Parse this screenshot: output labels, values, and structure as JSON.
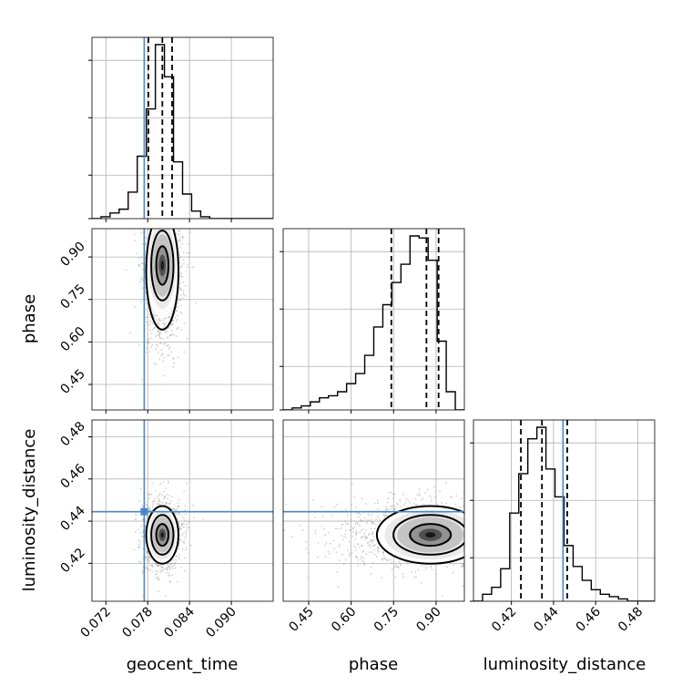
{
  "chart_data": {
    "type": "corner",
    "parameters": [
      "geocent_time",
      "phase",
      "luminosity_distance"
    ],
    "truths": {
      "geocent_time": 0.0775,
      "phase": null,
      "luminosity_distance": 0.4445
    },
    "truth_color": "#4a86c8",
    "grid": true,
    "axes": {
      "geocent_time": {
        "range": [
          0.07,
          0.096
        ],
        "ticks": [
          "0.072",
          "0.078",
          "0.084",
          "0.090"
        ],
        "tick_values": [
          0.072,
          0.078,
          0.084,
          0.09
        ]
      },
      "phase": {
        "range": [
          0.36,
          1.0
        ],
        "ticks": [
          "0.45",
          "0.60",
          "0.75",
          "0.90"
        ],
        "tick_values": [
          0.45,
          0.6,
          0.75,
          0.9
        ]
      },
      "luminosity_distance": {
        "range": [
          0.402,
          0.488
        ],
        "ticks": [
          "0.42",
          "0.44",
          "0.46",
          "0.48"
        ],
        "tick_values": [
          0.42,
          0.44,
          0.46,
          0.48
        ]
      }
    },
    "marginals": {
      "geocent_time": {
        "bin_edges": [
          0.07,
          0.0713,
          0.0726,
          0.0739,
          0.0752,
          0.0765,
          0.0778,
          0.0791,
          0.0804,
          0.0817,
          0.083,
          0.0843,
          0.0856,
          0.0869,
          0.0882,
          0.0895,
          0.0908,
          0.0921,
          0.0934,
          0.0947,
          0.096
        ],
        "counts": [
          0.0,
          0.01,
          0.03,
          0.05,
          0.14,
          0.33,
          0.58,
          0.92,
          0.75,
          0.3,
          0.13,
          0.04,
          0.01,
          0.0,
          0.0,
          0.0,
          0.0,
          0.0,
          0.0,
          0.0
        ],
        "quantiles": [
          0.0781,
          0.0801,
          0.0815
        ]
      },
      "phase": {
        "bin_edges": [
          0.36,
          0.392,
          0.424,
          0.456,
          0.488,
          0.52,
          0.552,
          0.584,
          0.616,
          0.648,
          0.68,
          0.712,
          0.744,
          0.776,
          0.808,
          0.84,
          0.872,
          0.904,
          0.936,
          0.968,
          1.0
        ],
        "counts": [
          0.0,
          0.01,
          0.02,
          0.04,
          0.06,
          0.07,
          0.09,
          0.13,
          0.18,
          0.27,
          0.41,
          0.52,
          0.63,
          0.72,
          0.86,
          0.85,
          0.74,
          0.34,
          0.09,
          0.0
        ],
        "quantiles": [
          0.742,
          0.866,
          0.909
        ]
      },
      "luminosity_distance": {
        "bin_edges": [
          0.402,
          0.4063,
          0.4106,
          0.4149,
          0.4192,
          0.4235,
          0.4278,
          0.4321,
          0.4364,
          0.4407,
          0.445,
          0.4493,
          0.4536,
          0.4579,
          0.4622,
          0.4665,
          0.4708,
          0.4751,
          0.4794,
          0.4837,
          0.488
        ],
        "counts": [
          0.0,
          0.03,
          0.06,
          0.14,
          0.38,
          0.55,
          0.7,
          0.75,
          0.57,
          0.45,
          0.24,
          0.15,
          0.09,
          0.05,
          0.03,
          0.02,
          0.01,
          0.0,
          0.0,
          0.0
        ],
        "quantiles": [
          0.4245,
          0.4345,
          0.4465
        ]
      }
    },
    "joint": {
      "geocent_time__phase": {
        "center": [
          0.0801,
          0.87
        ],
        "sigma": [
          0.0011,
          0.085
        ],
        "rho": 0.0
      },
      "geocent_time__luminosity_distance": {
        "center": [
          0.0801,
          0.4335
        ],
        "sigma": [
          0.0011,
          0.0065
        ],
        "rho": 0.0
      },
      "phase__luminosity_distance": {
        "center": [
          0.88,
          0.4335
        ],
        "sigma": [
          0.09,
          0.0065
        ],
        "rho": 0.1
      }
    }
  }
}
